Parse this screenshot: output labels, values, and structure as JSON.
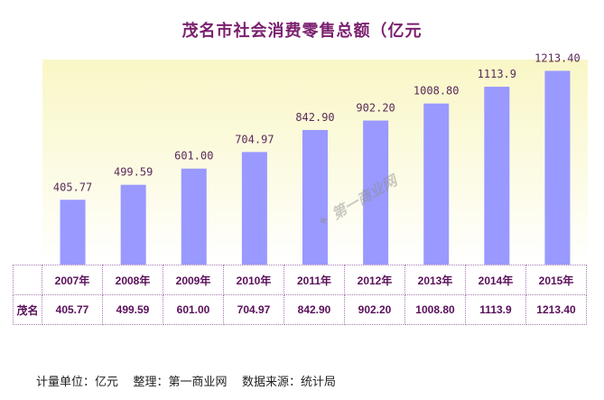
{
  "chart_data": {
    "type": "bar",
    "title": "茂名市社会消费零售总额（亿元",
    "categories": [
      "2007年",
      "2008年",
      "2009年",
      "2010年",
      "2011年",
      "2012年",
      "2013年",
      "2014年",
      "2015年"
    ],
    "series": [
      {
        "name": "茂名",
        "values": [
          405.77,
          499.59,
          601.0,
          704.97,
          842.9,
          902.2,
          1008.8,
          1113.9,
          1213.4
        ]
      }
    ],
    "value_labels": [
      "405.77",
      "499.59",
      "601.00",
      "704.97",
      "842.90",
      "902.20",
      "1008.80",
      "1113.9",
      "1213.40"
    ],
    "ylim": [
      0,
      1250
    ],
    "bar_color": "#9999ff",
    "grid": false,
    "legend": "none"
  },
  "table": {
    "row_label": "茂名"
  },
  "footer": "计量单位：亿元    整理：第一商业网    数据来源：统计局",
  "watermark": "第一商业网"
}
